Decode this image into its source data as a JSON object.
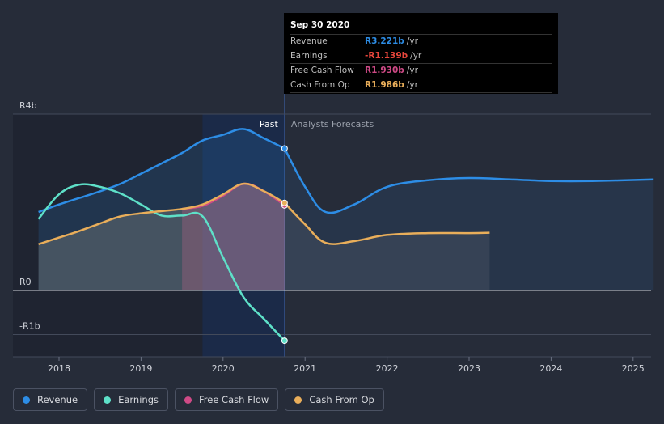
{
  "chart_data": {
    "type": "area",
    "xlabel": "",
    "ylabel": "",
    "y_unit_prefix": "R",
    "ylim": [
      -1.1,
      4
    ],
    "xlim": [
      2017.75,
      2025.25
    ],
    "y_ticks": [
      {
        "value": 4,
        "label": "R4b"
      },
      {
        "value": 0,
        "label": "R0"
      },
      {
        "value": -1,
        "label": "-R1b"
      }
    ],
    "x_ticks": [
      {
        "value": 2018,
        "label": "2018"
      },
      {
        "value": 2019,
        "label": "2019"
      },
      {
        "value": 2020,
        "label": "2020"
      },
      {
        "value": 2021,
        "label": "2021"
      },
      {
        "value": 2022,
        "label": "2022"
      },
      {
        "value": 2023,
        "label": "2023"
      },
      {
        "value": 2024,
        "label": "2024"
      },
      {
        "value": 2025,
        "label": "2025"
      }
    ],
    "past_label": "Past",
    "forecast_label": "Analysts Forecasts",
    "divider_x": 2020.75,
    "highlight_start_x": 2019.75,
    "series": [
      {
        "name": "Revenue",
        "color": "#2d8de6",
        "points": [
          [
            2017.75,
            1.78
          ],
          [
            2018.0,
            1.95
          ],
          [
            2018.25,
            2.1
          ],
          [
            2018.5,
            2.25
          ],
          [
            2018.75,
            2.42
          ],
          [
            2019.0,
            2.65
          ],
          [
            2019.25,
            2.88
          ],
          [
            2019.5,
            3.12
          ],
          [
            2019.75,
            3.4
          ],
          [
            2020.0,
            3.53
          ],
          [
            2020.25,
            3.66
          ],
          [
            2020.5,
            3.45
          ],
          [
            2020.75,
            3.221
          ]
        ],
        "forecast": [
          [
            2020.75,
            3.221
          ],
          [
            2021.0,
            2.35
          ],
          [
            2021.25,
            1.78
          ],
          [
            2021.6,
            1.95
          ],
          [
            2022.0,
            2.35
          ],
          [
            2022.5,
            2.5
          ],
          [
            2023.0,
            2.55
          ],
          [
            2023.5,
            2.52
          ],
          [
            2024.0,
            2.48
          ],
          [
            2024.5,
            2.48
          ],
          [
            2025.25,
            2.52
          ]
        ]
      },
      {
        "name": "Earnings",
        "color": "#5ee0c8",
        "points": [
          [
            2017.75,
            1.62
          ],
          [
            2018.0,
            2.18
          ],
          [
            2018.25,
            2.4
          ],
          [
            2018.5,
            2.35
          ],
          [
            2018.75,
            2.2
          ],
          [
            2019.0,
            1.95
          ],
          [
            2019.25,
            1.7
          ],
          [
            2019.5,
            1.7
          ],
          [
            2019.75,
            1.68
          ],
          [
            2020.0,
            0.75
          ],
          [
            2020.25,
            -0.15
          ],
          [
            2020.5,
            -0.65
          ],
          [
            2020.75,
            -1.139
          ]
        ],
        "forecast": []
      },
      {
        "name": "Free Cash Flow",
        "color": "#cf4a86",
        "points": [
          [
            2019.5,
            1.85
          ],
          [
            2019.75,
            1.92
          ],
          [
            2020.0,
            2.15
          ],
          [
            2020.25,
            2.42
          ],
          [
            2020.5,
            2.25
          ],
          [
            2020.75,
            1.93
          ]
        ],
        "forecast": []
      },
      {
        "name": "Cash From Op",
        "color": "#e9ae5a",
        "points": [
          [
            2017.75,
            1.05
          ],
          [
            2018.0,
            1.2
          ],
          [
            2018.25,
            1.35
          ],
          [
            2018.5,
            1.52
          ],
          [
            2018.75,
            1.68
          ],
          [
            2019.0,
            1.75
          ],
          [
            2019.25,
            1.8
          ],
          [
            2019.5,
            1.85
          ],
          [
            2019.75,
            1.95
          ],
          [
            2020.0,
            2.18
          ],
          [
            2020.25,
            2.42
          ],
          [
            2020.5,
            2.25
          ],
          [
            2020.75,
            1.986
          ]
        ],
        "forecast": [
          [
            2020.75,
            1.986
          ],
          [
            2021.0,
            1.5
          ],
          [
            2021.25,
            1.08
          ],
          [
            2021.6,
            1.12
          ],
          [
            2022.0,
            1.26
          ],
          [
            2022.5,
            1.3
          ],
          [
            2023.0,
            1.3
          ],
          [
            2023.25,
            1.31
          ]
        ]
      }
    ]
  },
  "tooltip": {
    "date": "Sep 30 2020",
    "rows": [
      {
        "label": "Revenue",
        "value": "R3.221b",
        "unit": "/yr",
        "color": "#2d8de6"
      },
      {
        "label": "Earnings",
        "value": "-R1.139b",
        "unit": "/yr",
        "color": "#e8463c"
      },
      {
        "label": "Free Cash Flow",
        "value": "R1.930b",
        "unit": "/yr",
        "color": "#cf4a86"
      },
      {
        "label": "Cash From Op",
        "value": "R1.986b",
        "unit": "/yr",
        "color": "#e9ae5a"
      }
    ]
  },
  "legend": [
    {
      "label": "Revenue",
      "color": "#2d8de6"
    },
    {
      "label": "Earnings",
      "color": "#5ee0c8"
    },
    {
      "label": "Free Cash Flow",
      "color": "#cf4a86"
    },
    {
      "label": "Cash From Op",
      "color": "#e9ae5a"
    }
  ]
}
